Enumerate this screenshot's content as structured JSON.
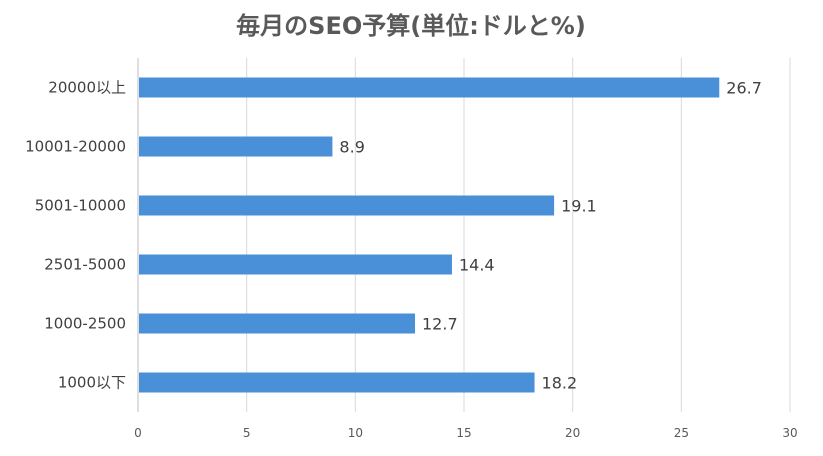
{
  "chart_data": {
    "type": "bar",
    "orientation": "horizontal",
    "title": "毎月のSEO予算(単位:ドルと%)",
    "categories": [
      "20000以上",
      "10001-20000",
      "5001-10000",
      "2501-5000",
      "1000-2500",
      "1000以下"
    ],
    "values": [
      26.7,
      8.9,
      19.1,
      14.4,
      12.7,
      18.2
    ],
    "value_labels": [
      "26.7",
      "8.9",
      "19.1",
      "14.4",
      "12.7",
      "18.2"
    ],
    "xlim": [
      0,
      30
    ],
    "x_ticks": [
      "0",
      "5",
      "10",
      "15",
      "20",
      "25",
      "30"
    ],
    "xlabel": "",
    "ylabel": "",
    "grid": true,
    "legend": "none",
    "bar_color": "#4a90d9"
  }
}
